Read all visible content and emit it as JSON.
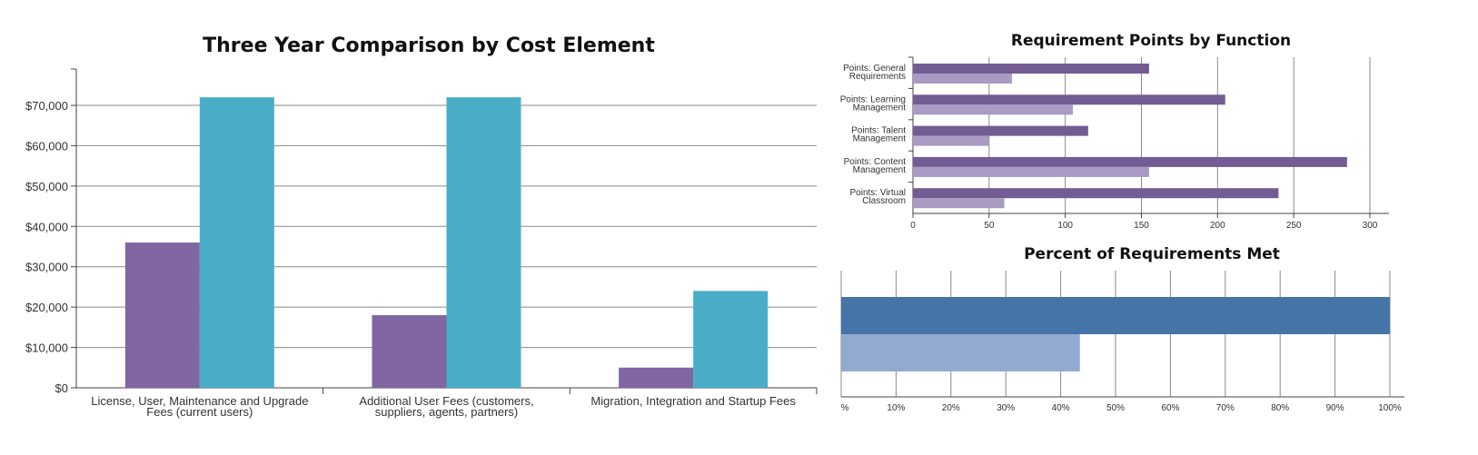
{
  "chart_data": [
    {
      "type": "bar",
      "title": "Three Year Comparison by Cost Element",
      "categories": [
        [
          "License, User, Maintenance and Upgrade",
          "Fees (current users)"
        ],
        [
          "Additional User Fees (customers,",
          "suppliers, agents, partners)"
        ],
        [
          "Migration, Integration and Startup Fees"
        ]
      ],
      "series": [
        {
          "values": [
            36000,
            18000,
            5000
          ],
          "color": "#8066a3"
        },
        {
          "values": [
            72000,
            72000,
            24000
          ],
          "color": "#4aadc7"
        }
      ],
      "yticks": [
        "$0",
        "$10,000",
        "$20,000",
        "$30,000",
        "$40,000",
        "$50,000",
        "$60,000",
        "$70,000"
      ],
      "ylim": [
        0,
        79000
      ],
      "grid": true,
      "xlabel": "",
      "ylabel": ""
    },
    {
      "type": "bar",
      "orientation": "horizontal",
      "title": "Requirement Points by Function",
      "categories": [
        [
          "Points: General",
          "Requirements"
        ],
        [
          "Points: Learning",
          "Management"
        ],
        [
          "Points: Talent",
          "Management"
        ],
        [
          "Points: Content",
          "Management"
        ],
        [
          "Points: Virtual",
          "Classroom"
        ]
      ],
      "series": [
        {
          "values": [
            155,
            205,
            115,
            285,
            240
          ],
          "color": "#735b93"
        },
        {
          "values": [
            65,
            105,
            50,
            155,
            60
          ],
          "color": "#a99bc3"
        }
      ],
      "xticks": [
        "0",
        "50",
        "100",
        "150",
        "200",
        "250",
        "300"
      ],
      "xlim": [
        0,
        312
      ],
      "grid": true
    },
    {
      "type": "bar",
      "orientation": "horizontal",
      "title": "Percent of Requirements Met",
      "series": [
        {
          "values": [
            100
          ],
          "color": "#4574a9"
        },
        {
          "values": [
            43.5
          ],
          "color": "#92aad0"
        }
      ],
      "xticks": [
        "%",
        "10%",
        "20%",
        "30%",
        "40%",
        "50%",
        "60%",
        "70%",
        "80%",
        "90%",
        "100%"
      ],
      "xlim": [
        0,
        100
      ],
      "grid": true
    }
  ]
}
